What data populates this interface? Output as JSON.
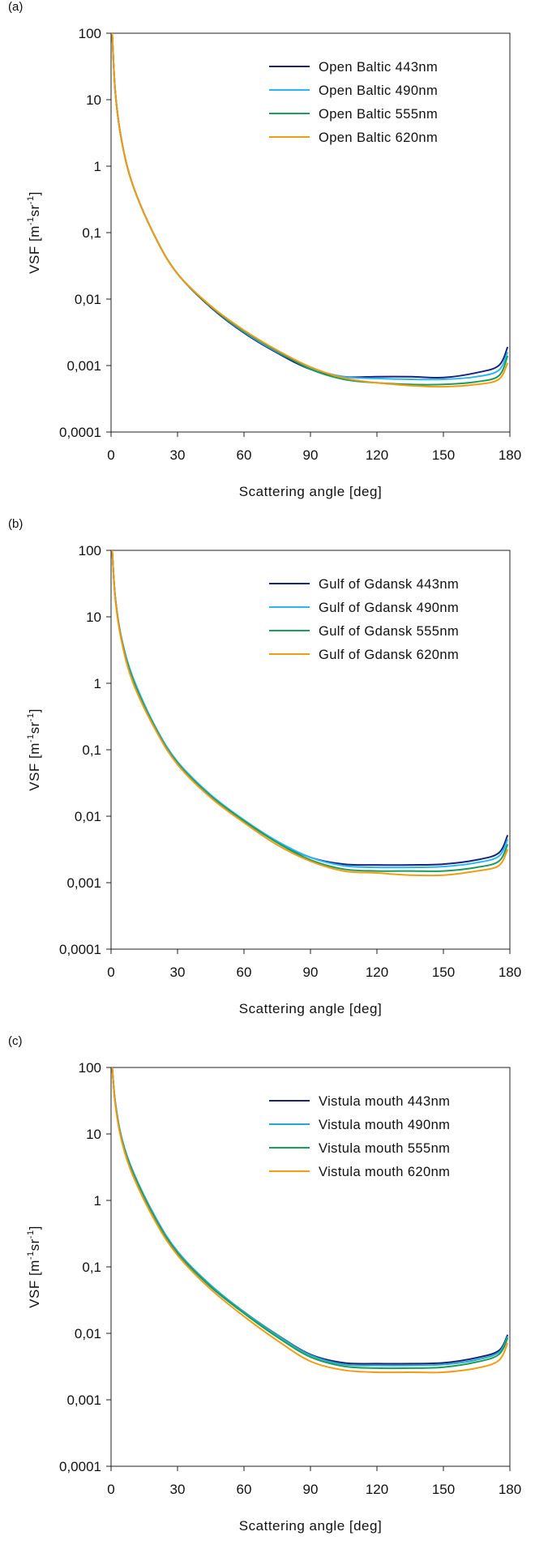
{
  "chart_data": [
    {
      "panel_label": "(a)",
      "type": "line",
      "xlabel": "Scattering angle [deg]",
      "ylabel": "VSF [m-1sr-1]",
      "ylabel_parts": {
        "base": "VSF [m",
        "sup1": "-1",
        "mid": "sr",
        "sup2": "-1",
        "end": "]"
      },
      "xlim": [
        0,
        180
      ],
      "ylim": [
        0.0001,
        100
      ],
      "yscale": "log",
      "x_ticks": [
        "0",
        "30",
        "60",
        "90",
        "120",
        "150",
        "180"
      ],
      "y_ticks": [
        "100",
        "10",
        "1",
        "0,1",
        "0,01",
        "0,001",
        "0,0001"
      ],
      "legend_position": "top-right",
      "x": [
        0.5,
        2,
        5,
        10,
        20,
        30,
        45,
        60,
        75,
        90,
        105,
        120,
        135,
        150,
        165,
        175,
        179
      ],
      "series": [
        {
          "name": "Open Baltic 443nm",
          "color": "#1a237e",
          "values": [
            100,
            12,
            2.2,
            0.5,
            0.085,
            0.024,
            0.0075,
            0.0031,
            0.00155,
            0.00088,
            0.00068,
            0.00068,
            0.00068,
            0.00066,
            0.00078,
            0.001,
            0.0019
          ]
        },
        {
          "name": "Open Baltic 490nm",
          "color": "#29b6f6",
          "values": [
            100,
            12,
            2.2,
            0.5,
            0.085,
            0.024,
            0.0077,
            0.0032,
            0.0016,
            0.00092,
            0.00068,
            0.00064,
            0.00062,
            0.00062,
            0.00068,
            0.00085,
            0.0016
          ]
        },
        {
          "name": "Open Baltic 555nm",
          "color": "#1a9e5c",
          "values": [
            100,
            12,
            2.2,
            0.5,
            0.085,
            0.024,
            0.0077,
            0.0033,
            0.00165,
            0.00088,
            0.00062,
            0.00055,
            0.00052,
            0.00052,
            0.00057,
            0.0007,
            0.0014
          ]
        },
        {
          "name": "Open Baltic 620nm",
          "color": "#f39c12",
          "values": [
            100,
            12,
            2.2,
            0.5,
            0.085,
            0.024,
            0.0079,
            0.0034,
            0.0017,
            0.00095,
            0.00065,
            0.00055,
            0.0005,
            0.00048,
            0.00052,
            0.00062,
            0.0011
          ]
        }
      ]
    },
    {
      "panel_label": "(b)",
      "type": "line",
      "xlabel": "Scattering angle [deg]",
      "ylabel": "VSF [m-1sr-1]",
      "ylabel_parts": {
        "base": "VSF [m",
        "sup1": "-1",
        "mid": "sr",
        "sup2": "-1",
        "end": "]"
      },
      "xlim": [
        0,
        180
      ],
      "ylim": [
        0.0001,
        100
      ],
      "yscale": "log",
      "x_ticks": [
        "0",
        "30",
        "60",
        "90",
        "120",
        "150",
        "180"
      ],
      "y_ticks": [
        "100",
        "10",
        "1",
        "0,1",
        "0,01",
        "0,001",
        "0,0001"
      ],
      "legend_position": "top-right",
      "x": [
        0.5,
        2,
        5,
        10,
        20,
        30,
        45,
        60,
        75,
        90,
        105,
        120,
        135,
        150,
        165,
        175,
        179
      ],
      "series": [
        {
          "name": "Gulf of Gdansk 443nm",
          "color": "#1a237e",
          "values": [
            100,
            18,
            4.2,
            1.15,
            0.22,
            0.065,
            0.02,
            0.0085,
            0.0041,
            0.0024,
            0.0019,
            0.00185,
            0.00185,
            0.0019,
            0.0022,
            0.0028,
            0.0052
          ]
        },
        {
          "name": "Gulf of Gdansk 490nm",
          "color": "#29b6f6",
          "values": [
            100,
            18,
            4.3,
            1.2,
            0.22,
            0.066,
            0.021,
            0.0088,
            0.0042,
            0.0024,
            0.0018,
            0.0017,
            0.0017,
            0.00175,
            0.002,
            0.0025,
            0.0045
          ]
        },
        {
          "name": "Gulf of Gdansk 555nm",
          "color": "#1a9e5c",
          "values": [
            100,
            18,
            4.2,
            1.1,
            0.21,
            0.063,
            0.02,
            0.0085,
            0.004,
            0.0022,
            0.0016,
            0.0015,
            0.0015,
            0.0015,
            0.0017,
            0.0021,
            0.0038
          ]
        },
        {
          "name": "Gulf of Gdansk 620nm",
          "color": "#f39c12",
          "values": [
            100,
            17,
            3.9,
            1.0,
            0.2,
            0.06,
            0.019,
            0.008,
            0.0037,
            0.0021,
            0.0015,
            0.0014,
            0.0013,
            0.0013,
            0.0015,
            0.0018,
            0.0032
          ]
        }
      ]
    },
    {
      "panel_label": "(c)",
      "type": "line",
      "xlabel": "Scattering angle [deg]",
      "ylabel": "VSF [m-1sr-1]",
      "ylabel_parts": {
        "base": "VSF [m",
        "sup1": "-1",
        "mid": "sr",
        "sup2": "-1",
        "end": "]"
      },
      "xlim": [
        0,
        180
      ],
      "ylim": [
        0.0001,
        100
      ],
      "yscale": "log",
      "x_ticks": [
        "0",
        "30",
        "60",
        "90",
        "120",
        "150",
        "180"
      ],
      "y_ticks": [
        "100",
        "10",
        "1",
        "0,1",
        "0,01",
        "0,001",
        "0,0001"
      ],
      "legend_position": "top-right",
      "x": [
        0.5,
        2,
        5,
        10,
        20,
        30,
        45,
        60,
        75,
        90,
        105,
        120,
        135,
        150,
        165,
        175,
        179
      ],
      "series": [
        {
          "name": "Vistula mouth 443nm",
          "color": "#1a237e",
          "values": [
            100,
            28,
            8.0,
            2.6,
            0.55,
            0.17,
            0.052,
            0.021,
            0.0095,
            0.0048,
            0.0036,
            0.0035,
            0.0035,
            0.0036,
            0.0043,
            0.0055,
            0.0095
          ]
        },
        {
          "name": "Vistula mouth 490nm",
          "color": "#26a9c7",
          "values": [
            100,
            28,
            8.2,
            2.7,
            0.56,
            0.17,
            0.053,
            0.021,
            0.0094,
            0.0047,
            0.0034,
            0.0033,
            0.0033,
            0.0034,
            0.004,
            0.0052,
            0.009
          ]
        },
        {
          "name": "Vistula mouth 555nm",
          "color": "#1a9e5c",
          "values": [
            100,
            27,
            7.8,
            2.5,
            0.52,
            0.16,
            0.05,
            0.02,
            0.0088,
            0.0044,
            0.0032,
            0.003,
            0.003,
            0.0031,
            0.0037,
            0.0048,
            0.0085
          ]
        },
        {
          "name": "Vistula mouth 620nm",
          "color": "#f39c12",
          "values": [
            100,
            26,
            7.3,
            2.3,
            0.48,
            0.15,
            0.046,
            0.018,
            0.0078,
            0.0038,
            0.0028,
            0.0026,
            0.0026,
            0.0026,
            0.003,
            0.0039,
            0.0072
          ]
        }
      ]
    }
  ]
}
